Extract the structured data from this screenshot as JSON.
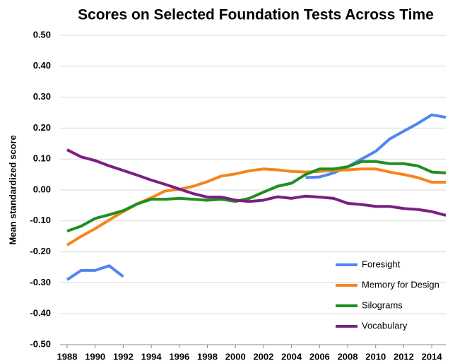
{
  "chart_data": {
    "type": "line",
    "title": "Scores on Selected Foundation Tests Across Time",
    "y_label": "Mean standardized score",
    "x": [
      1988,
      1989,
      1990,
      1991,
      1992,
      1993,
      1994,
      1995,
      1996,
      1997,
      1998,
      1999,
      2000,
      2001,
      2002,
      2003,
      2004,
      2005,
      2006,
      2007,
      2008,
      2009,
      2010,
      2011,
      2012,
      2013,
      2014,
      2015
    ],
    "xlim": [
      1988,
      2015
    ],
    "xticks": [
      1988,
      1990,
      1992,
      1994,
      1996,
      1998,
      2000,
      2002,
      2004,
      2006,
      2008,
      2010,
      2012,
      2014
    ],
    "ylim": [
      -0.5,
      0.5
    ],
    "yticks": [
      {
        "value": -0.5,
        "label": "-0.50"
      },
      {
        "value": -0.4,
        "label": "-0.40"
      },
      {
        "value": -0.3,
        "label": "-0.30"
      },
      {
        "value": -0.2,
        "label": "-0.20"
      },
      {
        "value": -0.1,
        "label": "-0.10"
      },
      {
        "value": 0,
        "label": "0.00"
      },
      {
        "value": 0.1,
        "label": "0.10"
      },
      {
        "value": 0.2,
        "label": "0.20"
      },
      {
        "value": 0.3,
        "label": "0.30"
      },
      {
        "value": 0.4,
        "label": "0.40"
      },
      {
        "value": 0.5,
        "label": "0.50"
      }
    ],
    "grid": true,
    "legend": "lower right",
    "series": [
      {
        "name": "Foresight",
        "color": "#4f86f0",
        "values": [
          -0.29,
          -0.26,
          -0.26,
          -0.245,
          -0.28,
          null,
          null,
          null,
          null,
          null,
          null,
          null,
          null,
          null,
          null,
          null,
          null,
          0.04,
          0.042,
          0.055,
          0.075,
          0.1,
          0.125,
          0.165,
          0.19,
          0.215,
          0.243,
          0.235
        ]
      },
      {
        "name": "Memory for Design",
        "color": "#f5851f",
        "values": [
          -0.178,
          -0.15,
          -0.125,
          -0.097,
          -0.07,
          -0.045,
          -0.025,
          -0.003,
          0.002,
          0.012,
          0.027,
          0.045,
          0.052,
          0.062,
          0.068,
          0.065,
          0.06,
          0.058,
          0.06,
          0.063,
          0.065,
          0.068,
          0.068,
          0.058,
          0.05,
          0.04,
          0.025,
          0.025
        ]
      },
      {
        "name": "Silograms",
        "color": "#1f8f1f",
        "values": [
          -0.133,
          -0.117,
          -0.092,
          -0.08,
          -0.067,
          -0.045,
          -0.03,
          -0.03,
          -0.027,
          -0.03,
          -0.033,
          -0.03,
          -0.037,
          -0.027,
          -0.007,
          0.012,
          0.022,
          0.05,
          0.068,
          0.068,
          0.075,
          0.092,
          0.092,
          0.085,
          0.085,
          0.078,
          0.058,
          0.055
        ]
      },
      {
        "name": "Vocabulary",
        "color": "#7b1f82",
        "values": [
          0.13,
          0.107,
          0.095,
          0.078,
          0.063,
          0.048,
          0.032,
          0.018,
          0.003,
          -0.012,
          -0.023,
          -0.023,
          -0.033,
          -0.037,
          -0.033,
          -0.022,
          -0.027,
          -0.02,
          -0.023,
          -0.027,
          -0.043,
          -0.047,
          -0.053,
          -0.053,
          -0.06,
          -0.063,
          -0.07,
          -0.082
        ]
      }
    ]
  }
}
